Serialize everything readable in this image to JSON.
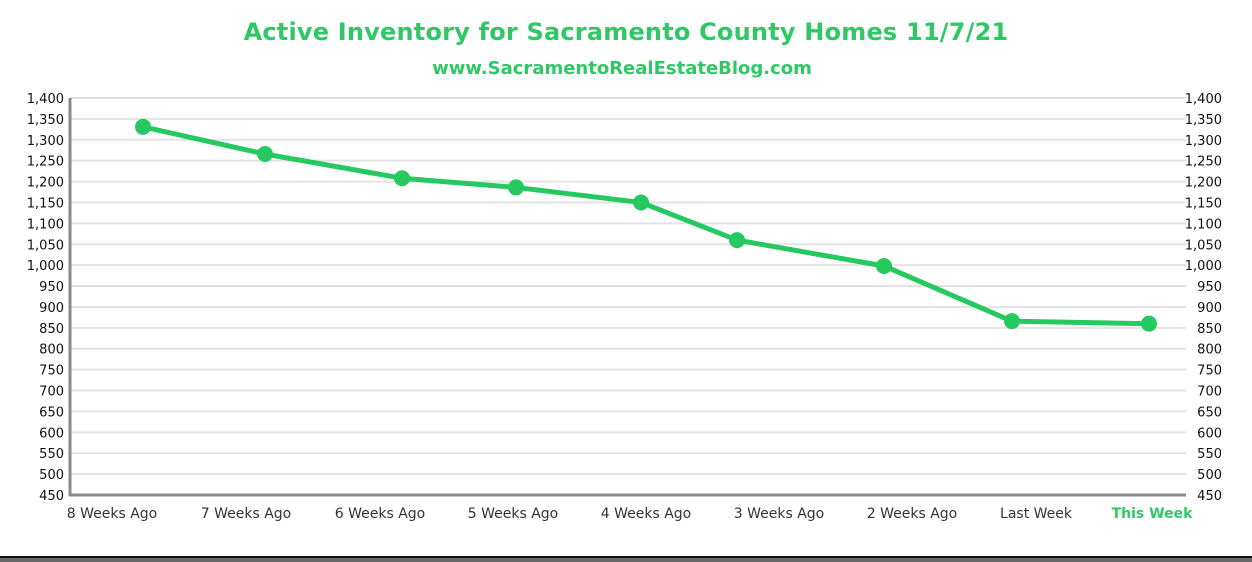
{
  "chart_data": {
    "type": "line",
    "title": "Active Inventory for Sacramento County Homes 11/7/21",
    "subtitle": "www.SacramentoRealEstateBlog.com",
    "xlabel": "",
    "ylabel": "",
    "categories": [
      "8 Weeks Ago",
      "7 Weeks Ago",
      "6 Weeks Ago",
      "5 Weeks Ago",
      "4 Weeks Ago",
      "3 Weeks Ago",
      "2 Weeks Ago",
      "Last Week",
      "This Week"
    ],
    "highlight_category": "This Week",
    "series": [
      {
        "name": "Active Inventory",
        "values": [
          1331,
          1266,
          1208,
          1186,
          1150,
          1060,
          998,
          866,
          860
        ]
      }
    ],
    "ylim": [
      450,
      1400
    ],
    "ytick_step": 50,
    "yticks": [
      "1,400",
      "1,350",
      "1,300",
      "1,250",
      "1,200",
      "1,150",
      "1,100",
      "1,050",
      "1,000",
      "950",
      "900",
      "850",
      "800",
      "750",
      "700",
      "650",
      "600",
      "550",
      "500",
      "450"
    ],
    "secondary_yticks": [
      "1,400",
      "1,350",
      "1,300",
      "1,250",
      "1,200",
      "1,150",
      "1,100",
      "1,050",
      "1,000",
      "950",
      "900",
      "850",
      "800",
      "750",
      "700",
      "650",
      "600",
      "550",
      "500",
      "450"
    ],
    "grid": true,
    "legend": "none",
    "colors": {
      "line": "#25c95f",
      "title": "#2ec866",
      "grid": "#e3e3e3",
      "axis": "#8a8a8a",
      "highlight": "#2ec866"
    }
  }
}
